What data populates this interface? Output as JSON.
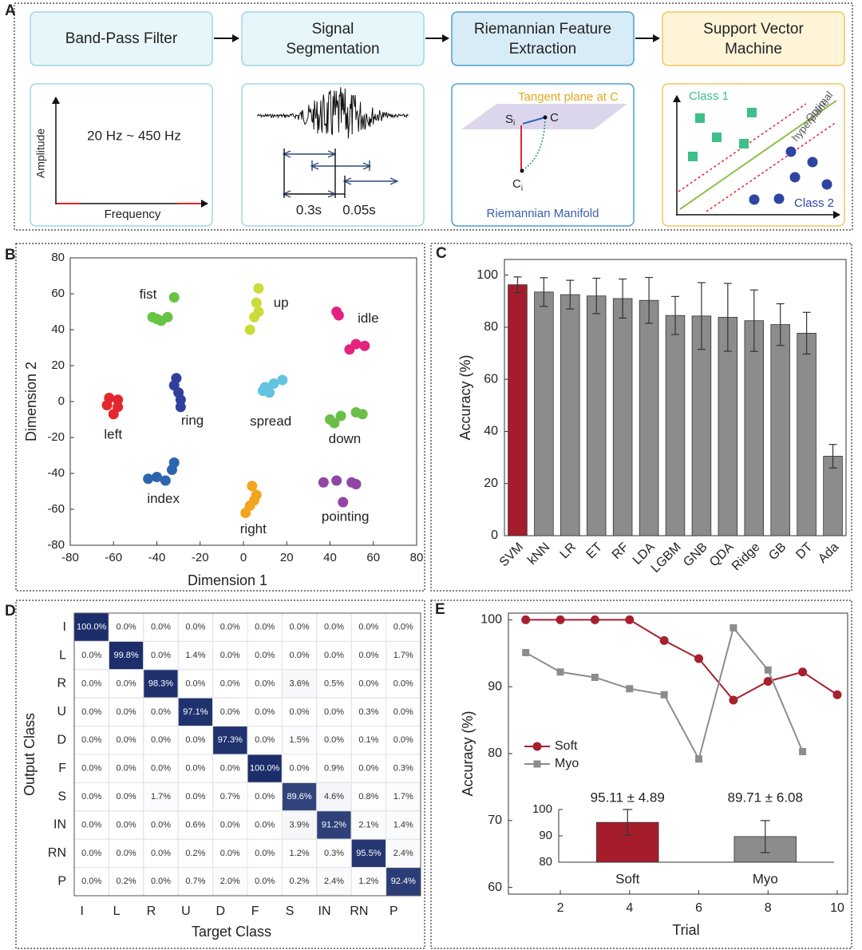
{
  "panel_labels": [
    "A",
    "B",
    "C",
    "D",
    "E"
  ],
  "diagram": {
    "steps": [
      {
        "lines": [
          "Band-Pass Filter"
        ]
      },
      {
        "lines": [
          "Signal",
          "Segmentation"
        ]
      },
      {
        "lines": [
          "Riemannian Feature",
          "Extraction"
        ]
      },
      {
        "lines": [
          "Support Vector",
          "Machine"
        ]
      }
    ],
    "filter": {
      "y_axis": "Amplitude",
      "x_axis": "Frequency",
      "band": "20 Hz ~ 450 Hz"
    },
    "segmentation": {
      "window": "0.3s",
      "step": "0.05s"
    },
    "riemann": {
      "plane": "Tangent plane at C",
      "s_base": "S",
      "s_sub": "i",
      "c": "C",
      "ci_base": "C",
      "ci_sub": "i",
      "manifold": "Riemannian Manifold"
    },
    "svm": {
      "class1": "Class 1",
      "class2": "Class 2",
      "hyperplane": [
        "Optimal",
        "hyperplane"
      ]
    }
  },
  "chart_data": [
    {
      "type": "scatter",
      "xlabel": "Dimension 1",
      "ylabel": "Dimension 2",
      "xlim": [
        -80,
        80
      ],
      "ylim": [
        -80,
        80
      ],
      "xticks": [
        -80,
        -60,
        -40,
        -20,
        0,
        20,
        40,
        60,
        80
      ],
      "yticks": [
        -80,
        -60,
        -40,
        -20,
        0,
        20,
        40,
        60,
        80
      ],
      "series": [
        {
          "name": "fist",
          "color": "#68c244",
          "x": [
            -42,
            -40,
            -38,
            -35,
            -32
          ],
          "y": [
            47,
            46,
            45,
            47,
            58
          ]
        },
        {
          "name": "up",
          "color": "#c9dc3a",
          "x": [
            7,
            6,
            7,
            5,
            3
          ],
          "y": [
            63,
            55,
            50,
            47,
            40
          ]
        },
        {
          "name": "idle",
          "color": "#e3237f",
          "x": [
            43,
            44,
            49,
            52,
            56
          ],
          "y": [
            50,
            48,
            29,
            32,
            31
          ]
        },
        {
          "name": "left",
          "color": "#e4262d",
          "x": [
            -62,
            -58,
            -60,
            -63,
            -58
          ],
          "y": [
            2,
            -3,
            -7,
            -2,
            1
          ]
        },
        {
          "name": "ring",
          "color": "#2f3f9c",
          "x": [
            -31,
            -32,
            -30,
            -29,
            -29
          ],
          "y": [
            13,
            9,
            5,
            1,
            -3
          ]
        },
        {
          "name": "spread",
          "color": "#62c3e3",
          "x": [
            9,
            10,
            12,
            14,
            18
          ],
          "y": [
            6,
            8,
            5,
            10,
            12
          ]
        },
        {
          "name": "down",
          "color": "#6bbf49",
          "x": [
            40,
            42,
            45,
            52,
            55
          ],
          "y": [
            -10,
            -12,
            -8,
            -6,
            -7
          ]
        },
        {
          "name": "index",
          "color": "#2d64b0",
          "x": [
            -44,
            -40,
            -36,
            -33,
            -32
          ],
          "y": [
            -43,
            -42,
            -44,
            -38,
            -34
          ]
        },
        {
          "name": "right",
          "color": "#f3a51e",
          "x": [
            1,
            3,
            5,
            6,
            4
          ],
          "y": [
            -62,
            -58,
            -55,
            -52,
            -47
          ]
        },
        {
          "name": "pointing",
          "color": "#9146a5",
          "x": [
            37,
            43,
            46,
            50,
            52
          ],
          "y": [
            -45,
            -44,
            -56,
            -45,
            -46
          ]
        }
      ]
    },
    {
      "type": "bar",
      "ylabel": "Accuracy (%)",
      "categories": [
        "SVM",
        "kNN",
        "LR",
        "ET",
        "RF",
        "LDA",
        "LGBM",
        "GNB",
        "QDA",
        "Ridge",
        "GB",
        "DT",
        "Ada"
      ],
      "values": [
        96.3,
        93.5,
        92.5,
        92,
        91,
        90.3,
        84.5,
        84.3,
        83.8,
        82.5,
        81,
        77.7,
        30.5
      ],
      "errors": [
        3,
        5.5,
        5.5,
        6.8,
        7.5,
        8.8,
        7.3,
        12.8,
        13,
        11.8,
        8,
        8,
        4.5
      ],
      "colors": [
        "#a51d2d",
        "#8c8c8c",
        "#8c8c8c",
        "#8c8c8c",
        "#8c8c8c",
        "#8c8c8c",
        "#8c8c8c",
        "#8c8c8c",
        "#8c8c8c",
        "#8c8c8c",
        "#8c8c8c",
        "#8c8c8c",
        "#8c8c8c"
      ],
      "ylim": [
        0,
        106
      ],
      "yticks": [
        0,
        20,
        40,
        60,
        80,
        100
      ]
    },
    {
      "type": "heatmap",
      "xlabel": "Target Class",
      "ylabel": "Output Class",
      "color": "#1b2d6b",
      "row_labels": [
        "I",
        "L",
        "R",
        "U",
        "D",
        "F",
        "S",
        "IN",
        "RN",
        "P"
      ],
      "col_labels": [
        "I",
        "L",
        "R",
        "U",
        "D",
        "F",
        "S",
        "IN",
        "RN",
        "P"
      ],
      "values": [
        [
          100.0,
          0,
          0,
          0,
          0,
          0,
          0,
          0,
          0,
          0
        ],
        [
          0,
          99.8,
          0,
          1.4,
          0,
          0,
          0,
          0,
          0,
          1.7
        ],
        [
          0,
          0,
          98.3,
          0,
          0,
          0,
          3.6,
          0.5,
          0,
          0
        ],
        [
          0,
          0,
          0,
          97.1,
          0,
          0,
          0,
          0,
          0.3,
          0
        ],
        [
          0,
          0,
          0,
          0,
          97.3,
          0,
          1.5,
          0,
          0.1,
          0
        ],
        [
          0,
          0,
          0,
          0,
          0,
          100.0,
          0,
          0.9,
          0,
          0.3
        ],
        [
          0,
          0,
          1.7,
          0,
          0.7,
          0,
          89.6,
          4.6,
          0.8,
          1.7
        ],
        [
          0,
          0,
          0,
          0.6,
          0,
          0,
          3.9,
          91.2,
          2.1,
          1.4
        ],
        [
          0,
          0,
          0,
          0.2,
          0,
          0,
          1.2,
          0.3,
          95.5,
          2.4
        ],
        [
          0,
          0.2,
          0,
          0.7,
          2.0,
          0,
          0.2,
          2.4,
          1.2,
          92.4
        ]
      ],
      "value_labels": [
        [
          "100.0%",
          "0.0%",
          "0.0%",
          "0.0%",
          "0.0%",
          "0.0%",
          "0.0%",
          "0.0%",
          "0.0%",
          "0.0%"
        ],
        [
          "0.0%",
          "99.8%",
          "0.0%",
          "1.4%",
          "0.0%",
          "0.0%",
          "0.0%",
          "0.0%",
          "0.0%",
          "1.7%"
        ],
        [
          "0.0%",
          "0.0%",
          "98.3%",
          "0.0%",
          "0.0%",
          "0.0%",
          "3.6%",
          "0.5%",
          "0.0%",
          "0.0%"
        ],
        [
          "0.0%",
          "0.0%",
          "0.0%",
          "97.1%",
          "0.0%",
          "0.0%",
          "0.0%",
          "0.0%",
          "0.3%",
          "0.0%"
        ],
        [
          "0.0%",
          "0.0%",
          "0.0%",
          "0.0%",
          "97.3%",
          "0.0%",
          "1.5%",
          "0.0%",
          "0.1%",
          "0.0%"
        ],
        [
          "0.0%",
          "0.0%",
          "0.0%",
          "0.0%",
          "0.0%",
          "100.0%",
          "0.0%",
          "0.9%",
          "0.0%",
          "0.3%"
        ],
        [
          "0.0%",
          "0.0%",
          "1.7%",
          "0.0%",
          "0.7%",
          "0.0%",
          "89.6%",
          "4.6%",
          "0.8%",
          "1.7%"
        ],
        [
          "0.0%",
          "0.0%",
          "0.0%",
          "0.6%",
          "0.0%",
          "0.0%",
          "3.9%",
          "91.2%",
          "2.1%",
          "1.4%"
        ],
        [
          "0.0%",
          "0.0%",
          "0.0%",
          "0.2%",
          "0.0%",
          "0.0%",
          "1.2%",
          "0.3%",
          "95.5%",
          "2.4%"
        ],
        [
          "0.0%",
          "0.2%",
          "0.0%",
          "0.7%",
          "2.0%",
          "0.0%",
          "0.2%",
          "2.4%",
          "1.2%",
          "92.4%"
        ]
      ]
    },
    {
      "type": "line",
      "xlabel": "Trial",
      "ylabel": "Accuracy (%)",
      "legend": "left",
      "x": [
        1,
        2,
        3,
        4,
        5,
        6,
        7,
        8,
        9,
        10
      ],
      "xlim": [
        0.5,
        10.3
      ],
      "ylim": [
        59,
        101
      ],
      "xticks": [
        2,
        4,
        6,
        8,
        10
      ],
      "yticks": [
        60,
        70,
        80,
        90,
        100
      ],
      "series": [
        {
          "name": "Soft",
          "color": "#a6202e",
          "marker": "circle",
          "values": [
            100,
            100,
            100,
            100,
            96.9,
            94.2,
            88,
            90.8,
            92.2,
            88.8
          ]
        },
        {
          "name": "Myo",
          "color": "#8c8c8c",
          "marker": "square",
          "values": [
            95.1,
            92.2,
            91.4,
            89.7,
            88.8,
            79.2,
            98.8,
            92.5,
            80.3,
            null
          ]
        }
      ]
    },
    {
      "type": "bar",
      "categories": [
        "Soft",
        "Myo"
      ],
      "values": [
        95.11,
        89.71
      ],
      "errors": [
        4.89,
        6.08
      ],
      "value_labels": [
        "95.11 ± 4.89",
        "89.71 ± 6.08"
      ],
      "colors": [
        "#a51d2d",
        "#8c8c8c"
      ],
      "ylim": [
        80,
        100
      ],
      "yticks": [
        80,
        90,
        100
      ]
    }
  ]
}
